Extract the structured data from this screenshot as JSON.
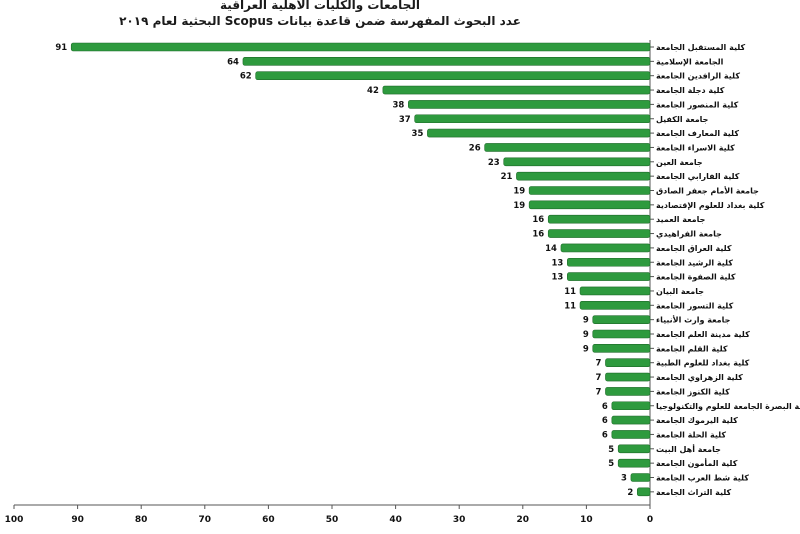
{
  "chart_data": {
    "type": "bar",
    "orientation": "horizontal",
    "x_direction": "reversed",
    "title": "الجامعات والكليات الأهلية العراقية",
    "subtitle": "عدد البحوث المفهرسة ضمن قاعدة بيانات Scopus البحثية لعام ٢٠١٩",
    "xlabel": "",
    "ylabel": "",
    "xlim": [
      0,
      100
    ],
    "x_ticks": [
      "100",
      "90",
      "80",
      "70",
      "60",
      "50",
      "40",
      "30",
      "20",
      "10",
      "0"
    ],
    "grid": false,
    "bar_color": "#2e9a3e",
    "categories": [
      "كلية المستقبل الجامعة",
      "الجامعة الإسلامية",
      "كلية الرافدين الجامعة",
      "كلية دجلة الجامعة",
      "كلية المنصور الجامعة",
      "جامعة الكفيل",
      "كلية المعارف الجامعة",
      "كلية الاسراء الجامعة",
      "جامعة العين",
      "كلية الفارابي الجامعة",
      "جامعة الأمام جعفر الصادق",
      "كلية بغداد للعلوم الإقتصادية",
      "جامعة العميد",
      "جامعة الفراهيدي",
      "كلية العراق الجامعة",
      "كلية الرشيد الجامعة",
      "كلية الصفوة الجامعة",
      "جامعة البيان",
      "كلية التسور الجامعة",
      "جامعة وارث الأنبياء",
      "كلية مدينة العلم الجامعة",
      "كلية القلم الجامعة",
      "كلية بغداد للعلوم الطبية",
      "كلية الزهراوي الجامعة",
      "كلية الكنوز الجامعة",
      "كلية البصرة الجامعة للعلوم والتكنولوجيا",
      "كلية اليرموك الجامعة",
      "كلية الحلة الجامعة",
      "جامعة أهل البيت",
      "كلية المأمون الجامعة",
      "كلية شط العرب الجامعة",
      "كلية التراث الجامعة"
    ],
    "values": [
      91,
      64,
      62,
      42,
      38,
      37,
      35,
      26,
      23,
      21,
      19,
      19,
      16,
      16,
      14,
      13,
      13,
      11,
      11,
      9,
      9,
      9,
      7,
      7,
      7,
      6,
      6,
      6,
      5,
      5,
      3,
      2
    ]
  }
}
